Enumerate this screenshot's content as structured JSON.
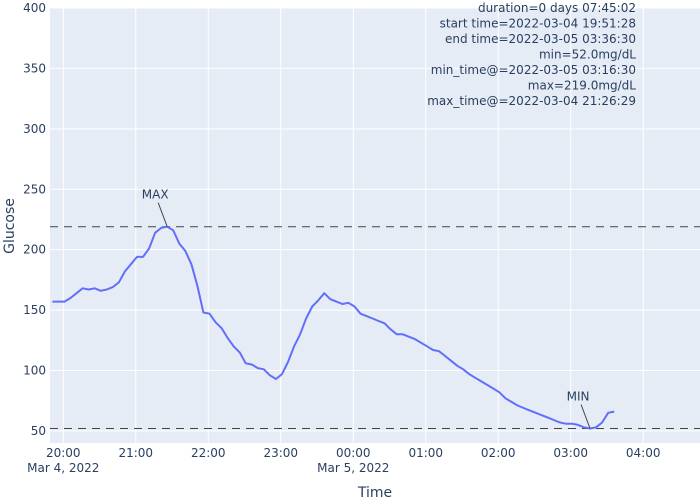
{
  "chart_data": {
    "type": "line",
    "xlabel": "Time",
    "ylabel": "Glucose",
    "ylim": [
      40,
      400
    ],
    "xlim": [
      "2022-03-04 19:49",
      "2022-03-05 04:47"
    ],
    "grid": true,
    "legend": "none",
    "colors": {
      "background": "#e5ecf6",
      "grid": "#ffffff",
      "line": "#636efa",
      "reference": "#444444",
      "text": "#2a3f5f"
    },
    "y_ticks": [
      50,
      100,
      150,
      200,
      250,
      300,
      350,
      400
    ],
    "x_ticks": [
      {
        "t": "2022-03-04 20:00",
        "label": "20:00",
        "sublabel": "Mar 4, 2022"
      },
      {
        "t": "2022-03-04 21:00",
        "label": "21:00",
        "sublabel": ""
      },
      {
        "t": "2022-03-04 22:00",
        "label": "22:00",
        "sublabel": ""
      },
      {
        "t": "2022-03-04 23:00",
        "label": "23:00",
        "sublabel": ""
      },
      {
        "t": "2022-03-05 00:00",
        "label": "00:00",
        "sublabel": "Mar 5, 2022"
      },
      {
        "t": "2022-03-05 01:00",
        "label": "01:00",
        "sublabel": ""
      },
      {
        "t": "2022-03-05 02:00",
        "label": "02:00",
        "sublabel": ""
      },
      {
        "t": "2022-03-05 03:00",
        "label": "03:00",
        "sublabel": ""
      },
      {
        "t": "2022-03-05 04:00",
        "label": "04:00",
        "sublabel": ""
      }
    ],
    "reference_lines": [
      {
        "y": 219
      },
      {
        "y": 52
      }
    ],
    "annotations": [
      {
        "text": "MAX",
        "t": "2022-03-04 21:26",
        "y": 219
      },
      {
        "text": "MIN",
        "t": "2022-03-05 03:16",
        "y": 52
      }
    ],
    "info_lines": [
      "duration=0 days 07:45:02",
      "start time=2022-03-04 19:51:28",
      "end time=2022-03-05 03:36:30",
      "min=52.0mg/dL",
      "min_time@=2022-03-05 03:16:30",
      "max=219.0mg/dL",
      "max_time@=2022-03-04 21:26:29"
    ],
    "series": [
      {
        "points": [
          [
            "2022-03-04 19:51",
            157
          ],
          [
            "2022-03-04 19:56",
            157
          ],
          [
            "2022-03-04 20:01",
            157
          ],
          [
            "2022-03-04 20:06",
            160
          ],
          [
            "2022-03-04 20:11",
            164
          ],
          [
            "2022-03-04 20:16",
            168
          ],
          [
            "2022-03-04 20:21",
            167
          ],
          [
            "2022-03-04 20:26",
            168
          ],
          [
            "2022-03-04 20:31",
            166
          ],
          [
            "2022-03-04 20:36",
            167
          ],
          [
            "2022-03-04 20:41",
            169
          ],
          [
            "2022-03-04 20:46",
            173
          ],
          [
            "2022-03-04 20:51",
            182
          ],
          [
            "2022-03-04 20:56",
            188
          ],
          [
            "2022-03-04 21:01",
            194
          ],
          [
            "2022-03-04 21:06",
            194
          ],
          [
            "2022-03-04 21:11",
            201
          ],
          [
            "2022-03-04 21:16",
            214
          ],
          [
            "2022-03-04 21:21",
            218
          ],
          [
            "2022-03-04 21:26",
            219
          ],
          [
            "2022-03-04 21:31",
            216
          ],
          [
            "2022-03-04 21:36",
            205
          ],
          [
            "2022-03-04 21:41",
            199
          ],
          [
            "2022-03-04 21:46",
            188
          ],
          [
            "2022-03-04 21:51",
            170
          ],
          [
            "2022-03-04 21:56",
            148
          ],
          [
            "2022-03-04 22:01",
            147
          ],
          [
            "2022-03-04 22:06",
            140
          ],
          [
            "2022-03-04 22:11",
            135
          ],
          [
            "2022-03-04 22:16",
            127
          ],
          [
            "2022-03-04 22:21",
            120
          ],
          [
            "2022-03-04 22:26",
            115
          ],
          [
            "2022-03-04 22:31",
            106
          ],
          [
            "2022-03-04 22:36",
            105
          ],
          [
            "2022-03-04 22:41",
            102
          ],
          [
            "2022-03-04 22:46",
            101
          ],
          [
            "2022-03-04 22:51",
            96
          ],
          [
            "2022-03-04 22:56",
            93
          ],
          [
            "2022-03-04 23:01",
            97
          ],
          [
            "2022-03-04 23:06",
            107
          ],
          [
            "2022-03-04 23:11",
            120
          ],
          [
            "2022-03-04 23:16",
            130
          ],
          [
            "2022-03-04 23:21",
            143
          ],
          [
            "2022-03-04 23:26",
            153
          ],
          [
            "2022-03-04 23:31",
            158
          ],
          [
            "2022-03-04 23:36",
            164
          ],
          [
            "2022-03-04 23:41",
            159
          ],
          [
            "2022-03-04 23:46",
            157
          ],
          [
            "2022-03-04 23:51",
            155
          ],
          [
            "2022-03-04 23:56",
            156
          ],
          [
            "2022-03-05 00:01",
            153
          ],
          [
            "2022-03-05 00:06",
            147
          ],
          [
            "2022-03-05 00:11",
            145
          ],
          [
            "2022-03-05 00:16",
            143
          ],
          [
            "2022-03-05 00:21",
            141
          ],
          [
            "2022-03-05 00:26",
            139
          ],
          [
            "2022-03-05 00:31",
            134
          ],
          [
            "2022-03-05 00:36",
            130
          ],
          [
            "2022-03-05 00:41",
            130
          ],
          [
            "2022-03-05 00:46",
            128
          ],
          [
            "2022-03-05 00:51",
            126
          ],
          [
            "2022-03-05 00:56",
            123
          ],
          [
            "2022-03-05 01:01",
            120
          ],
          [
            "2022-03-05 01:06",
            117
          ],
          [
            "2022-03-05 01:11",
            116
          ],
          [
            "2022-03-05 01:16",
            112
          ],
          [
            "2022-03-05 01:21",
            108
          ],
          [
            "2022-03-05 01:26",
            104
          ],
          [
            "2022-03-05 01:31",
            101
          ],
          [
            "2022-03-05 01:36",
            97
          ],
          [
            "2022-03-05 01:41",
            94
          ],
          [
            "2022-03-05 01:46",
            91
          ],
          [
            "2022-03-05 01:51",
            88
          ],
          [
            "2022-03-05 01:56",
            85
          ],
          [
            "2022-03-05 02:01",
            82
          ],
          [
            "2022-03-05 02:06",
            77
          ],
          [
            "2022-03-05 02:11",
            74
          ],
          [
            "2022-03-05 02:16",
            71
          ],
          [
            "2022-03-05 02:21",
            69
          ],
          [
            "2022-03-05 02:26",
            67
          ],
          [
            "2022-03-05 02:31",
            65
          ],
          [
            "2022-03-05 02:36",
            63
          ],
          [
            "2022-03-05 02:41",
            61
          ],
          [
            "2022-03-05 02:46",
            59
          ],
          [
            "2022-03-05 02:51",
            57
          ],
          [
            "2022-03-05 02:56",
            56
          ],
          [
            "2022-03-05 03:01",
            56
          ],
          [
            "2022-03-05 03:06",
            55
          ],
          [
            "2022-03-05 03:11",
            53
          ],
          [
            "2022-03-05 03:16",
            52
          ],
          [
            "2022-03-05 03:21",
            53
          ],
          [
            "2022-03-05 03:26",
            57
          ],
          [
            "2022-03-05 03:31",
            65
          ],
          [
            "2022-03-05 03:36",
            66
          ]
        ]
      }
    ]
  }
}
